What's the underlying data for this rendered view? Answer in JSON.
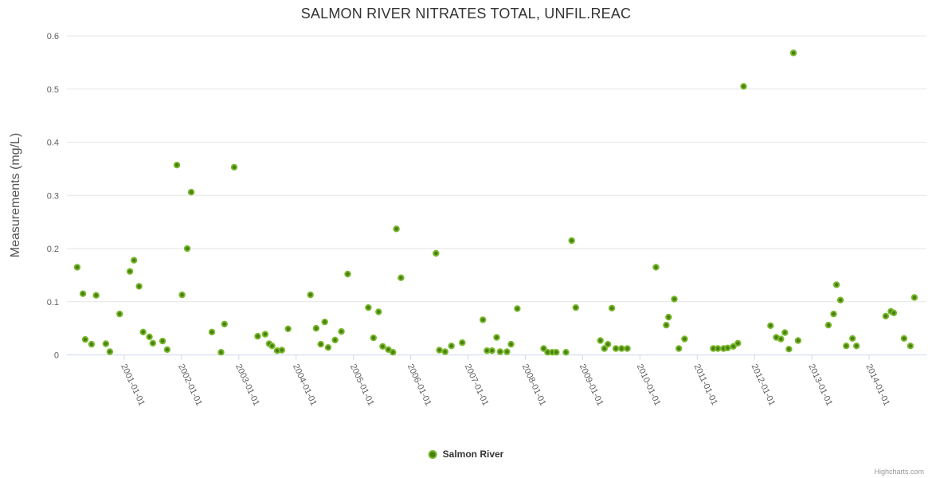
{
  "chart": {
    "title": "SALMON RIVER NITRATES TOTAL, UNFIL.REAC",
    "credits_label": "Highcharts.com"
  },
  "legend": {
    "items": [
      {
        "label": "Salmon River",
        "marker_color": "#76b82a"
      }
    ]
  },
  "colors": {
    "point_fill": "#4a7d10",
    "point_stroke": "#76b82a",
    "grid_line": "#e6e6e6",
    "axis_line": "#ccd6eb",
    "tick_label": "#606060",
    "axis_title": "#555555",
    "title_text": "#333333"
  },
  "chart_data": {
    "type": "scatter",
    "title": "SALMON RIVER NITRATES TOTAL, UNFIL.REAC",
    "xlabel": "",
    "ylabel": "Measurements (mg/L)",
    "ylim": [
      0,
      0.6
    ],
    "xlim_years": [
      2000,
      2015
    ],
    "yticks": [
      0,
      0.1,
      0.2,
      0.3,
      0.4,
      0.5,
      0.6
    ],
    "xticks": [
      "2001-01-01",
      "2002-01-01",
      "2003-01-01",
      "2004-01-01",
      "2005-01-01",
      "2006-01-01",
      "2007-01-01",
      "2008-01-01",
      "2009-01-01",
      "2010-01-01",
      "2011-01-01",
      "2012-01-01",
      "2013-01-01",
      "2014-01-01"
    ],
    "grid": "horizontal",
    "legend_position": "bottom-center",
    "series": [
      {
        "name": "Salmon River",
        "points": [
          [
            2000.18,
            0.165
          ],
          [
            2000.28,
            0.115
          ],
          [
            2000.32,
            0.029
          ],
          [
            2000.43,
            0.02
          ],
          [
            2000.51,
            0.112
          ],
          [
            2000.68,
            0.021
          ],
          [
            2000.75,
            0.006
          ],
          [
            2000.92,
            0.077
          ],
          [
            2001.1,
            0.157
          ],
          [
            2001.17,
            0.178
          ],
          [
            2001.26,
            0.129
          ],
          [
            2001.33,
            0.043
          ],
          [
            2001.44,
            0.034
          ],
          [
            2001.5,
            0.022
          ],
          [
            2001.67,
            0.026
          ],
          [
            2001.75,
            0.01
          ],
          [
            2001.92,
            0.357
          ],
          [
            2002.01,
            0.113
          ],
          [
            2002.1,
            0.2
          ],
          [
            2002.17,
            0.306
          ],
          [
            2002.53,
            0.043
          ],
          [
            2002.69,
            0.005
          ],
          [
            2002.75,
            0.058
          ],
          [
            2002.92,
            0.353
          ],
          [
            2003.33,
            0.035
          ],
          [
            2003.46,
            0.039
          ],
          [
            2003.53,
            0.021
          ],
          [
            2003.58,
            0.017
          ],
          [
            2003.67,
            0.008
          ],
          [
            2003.75,
            0.009
          ],
          [
            2003.86,
            0.049
          ],
          [
            2004.25,
            0.113
          ],
          [
            2004.35,
            0.05
          ],
          [
            2004.43,
            0.02
          ],
          [
            2004.5,
            0.062
          ],
          [
            2004.56,
            0.014
          ],
          [
            2004.68,
            0.028
          ],
          [
            2004.79,
            0.044
          ],
          [
            2004.9,
            0.152
          ],
          [
            2005.26,
            0.089
          ],
          [
            2005.35,
            0.032
          ],
          [
            2005.44,
            0.081
          ],
          [
            2005.51,
            0.016
          ],
          [
            2005.61,
            0.01
          ],
          [
            2005.69,
            0.005
          ],
          [
            2005.75,
            0.237
          ],
          [
            2005.83,
            0.145
          ],
          [
            2006.44,
            0.191
          ],
          [
            2006.5,
            0.009
          ],
          [
            2006.6,
            0.006
          ],
          [
            2006.71,
            0.017
          ],
          [
            2006.9,
            0.023
          ],
          [
            2007.26,
            0.066
          ],
          [
            2007.33,
            0.008
          ],
          [
            2007.42,
            0.008
          ],
          [
            2007.5,
            0.033
          ],
          [
            2007.56,
            0.006
          ],
          [
            2007.68,
            0.006
          ],
          [
            2007.75,
            0.02
          ],
          [
            2007.86,
            0.087
          ],
          [
            2008.32,
            0.012
          ],
          [
            2008.39,
            0.005
          ],
          [
            2008.47,
            0.005
          ],
          [
            2008.54,
            0.005
          ],
          [
            2008.71,
            0.005
          ],
          [
            2008.81,
            0.215
          ],
          [
            2008.88,
            0.089
          ],
          [
            2009.31,
            0.027
          ],
          [
            2009.38,
            0.012
          ],
          [
            2009.44,
            0.02
          ],
          [
            2009.51,
            0.088
          ],
          [
            2009.58,
            0.012
          ],
          [
            2009.68,
            0.012
          ],
          [
            2009.78,
            0.012
          ],
          [
            2010.28,
            0.165
          ],
          [
            2010.46,
            0.056
          ],
          [
            2010.5,
            0.071
          ],
          [
            2010.6,
            0.105
          ],
          [
            2010.68,
            0.012
          ],
          [
            2010.78,
            0.03
          ],
          [
            2011.28,
            0.012
          ],
          [
            2011.36,
            0.012
          ],
          [
            2011.46,
            0.012
          ],
          [
            2011.53,
            0.013
          ],
          [
            2011.63,
            0.016
          ],
          [
            2011.71,
            0.022
          ],
          [
            2011.81,
            0.505
          ],
          [
            2012.28,
            0.055
          ],
          [
            2012.38,
            0.033
          ],
          [
            2012.46,
            0.03
          ],
          [
            2012.53,
            0.042
          ],
          [
            2012.6,
            0.011
          ],
          [
            2012.68,
            0.568
          ],
          [
            2012.76,
            0.027
          ],
          [
            2013.29,
            0.056
          ],
          [
            2013.38,
            0.077
          ],
          [
            2013.43,
            0.132
          ],
          [
            2013.5,
            0.103
          ],
          [
            2013.6,
            0.017
          ],
          [
            2013.71,
            0.031
          ],
          [
            2013.78,
            0.017
          ],
          [
            2014.29,
            0.073
          ],
          [
            2014.38,
            0.082
          ],
          [
            2014.43,
            0.079
          ],
          [
            2014.61,
            0.031
          ],
          [
            2014.72,
            0.017
          ],
          [
            2014.79,
            0.108
          ]
        ]
      }
    ]
  }
}
